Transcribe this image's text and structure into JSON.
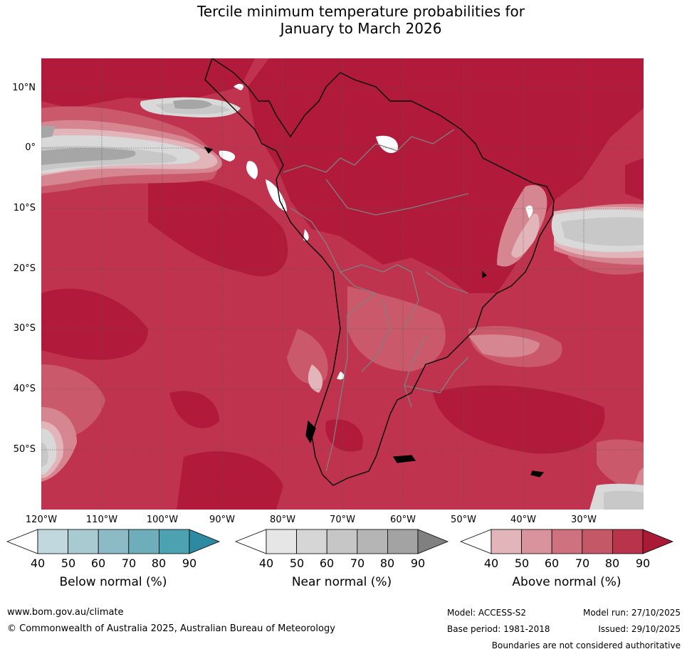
{
  "title_line1": "Tercile minimum temperature probabilities for",
  "title_line2": "January to March 2026",
  "map": {
    "latitude_labels": [
      "10°N",
      "0°",
      "10°S",
      "20°S",
      "30°S",
      "40°S",
      "50°S"
    ],
    "longitude_labels": [
      "120°W",
      "110°W",
      "100°W",
      "90°W",
      "80°W",
      "70°W",
      "60°W",
      "50°W",
      "40°W",
      "30°W"
    ],
    "colors": {
      "above_90": "#b11a3b",
      "above_80": "#c0334f",
      "above_70": "#ca5a6b",
      "above_60": "#d58690",
      "above_50": "#e2b5bb",
      "near_60": "#c8c8c8",
      "near_50": "#d9d9d9",
      "near_80": "#a6a6a6",
      "near_40": "#ffffff",
      "coast": "#000000",
      "border": "#808080",
      "grid": "#555555"
    }
  },
  "legends": [
    {
      "title": "Below normal (%)",
      "ticks": [
        "40",
        "50",
        "60",
        "70",
        "80",
        "90"
      ],
      "colors": [
        "#c0d8de",
        "#a8cad1",
        "#8cbbc6",
        "#6eaebb",
        "#4da2b2",
        "#2e8aa0"
      ]
    },
    {
      "title": "Near normal (%)",
      "ticks": [
        "40",
        "50",
        "60",
        "70",
        "80",
        "90"
      ],
      "colors": [
        "#e6e6e6",
        "#d6d6d6",
        "#c6c6c6",
        "#b5b5b5",
        "#a3a3a3",
        "#808080"
      ]
    },
    {
      "title": "Above normal (%)",
      "ticks": [
        "40",
        "50",
        "60",
        "70",
        "80",
        "90"
      ],
      "colors": [
        "#e2b5bb",
        "#d8939c",
        "#cd727e",
        "#c55866",
        "#b9344a",
        "#a81a36"
      ]
    }
  ],
  "footer": {
    "website": "www.bom.gov.au/climate",
    "copyright": "© Commonwealth of Australia 2025, Australian Bureau of Meteorology",
    "model": "Model: ACCESS-S2",
    "model_run": "Model run: 27/10/2025",
    "base_period": "Base period: 1981-2018",
    "issued": "Issued: 29/10/2025",
    "disclaimer": "Boundaries are not considered authoritative"
  }
}
